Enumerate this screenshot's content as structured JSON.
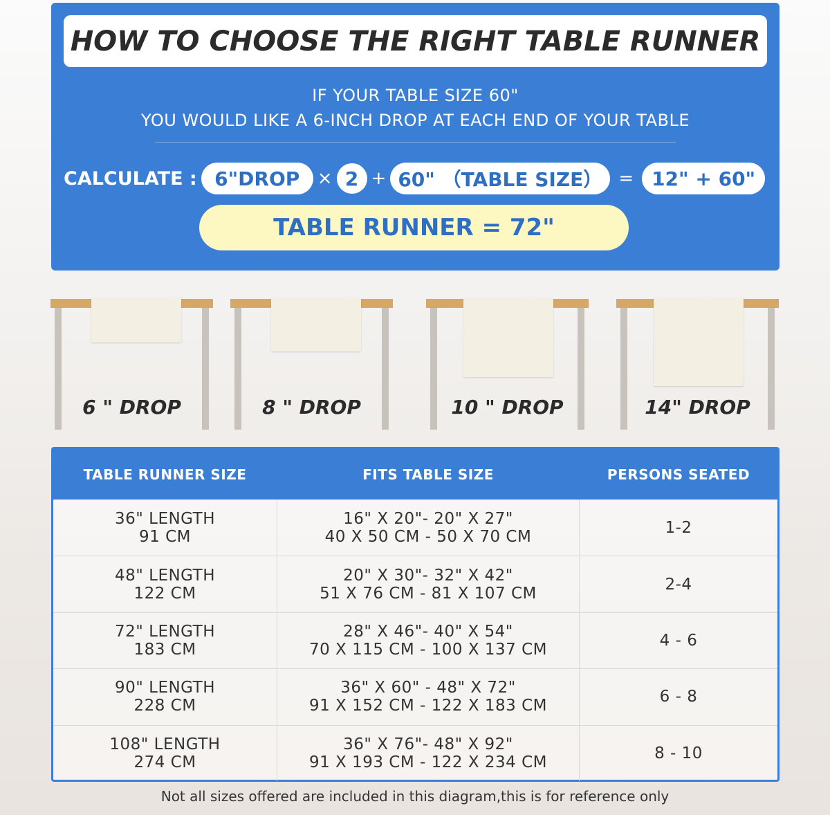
{
  "title": "HOW TO CHOOSE THE RIGHT TABLE RUNNER",
  "intro": {
    "line1": "IF YOUR TABLE SIZE 60\"",
    "line2": "YOU WOULD LIKE A 6-INCH DROP AT EACH END OF YOUR TABLE"
  },
  "calc": {
    "label": "CALCULATE :",
    "drop": "6\"DROP",
    "times": "×",
    "multiplier": "2",
    "plus": "+",
    "table": "60\" （TABLE SIZE）",
    "equals": "=",
    "sum": "12\" + 60\"",
    "result": "TABLE RUNNER = 72\""
  },
  "drops": [
    {
      "label": "6 \" DROP",
      "inches": 6
    },
    {
      "label": "8 \" DROP",
      "inches": 8
    },
    {
      "label": "10 \" DROP",
      "inches": 10
    },
    {
      "label": "14\" DROP",
      "inches": 14
    }
  ],
  "table": {
    "headers": [
      "TABLE RUNNER SIZE",
      "FITS TABLE SIZE",
      "PERSONS SEATED"
    ],
    "rows": [
      {
        "size": [
          "36\" LENGTH",
          "91 CM"
        ],
        "fits": [
          "16\" X 20\"- 20\" X 27\"",
          "40 X 50 CM - 50 X 70 CM"
        ],
        "persons": "1-2"
      },
      {
        "size": [
          "48\" LENGTH",
          "122 CM"
        ],
        "fits": [
          "20\" X 30\"- 32\" X 42\"",
          "51 X 76 CM - 81 X 107 CM"
        ],
        "persons": "2-4"
      },
      {
        "size": [
          "72\" LENGTH",
          "183 CM"
        ],
        "fits": [
          "28\" X 46\"- 40\" X 54\"",
          "70 X 115 CM - 100 X 137 CM"
        ],
        "persons": "4 - 6"
      },
      {
        "size": [
          "90\" LENGTH",
          "228 CM"
        ],
        "fits": [
          "36\" X 60\" - 48\" X 72\"",
          "91 X 152 CM - 122 X 183 CM"
        ],
        "persons": "6 - 8"
      },
      {
        "size": [
          "108\" LENGTH",
          "274 CM"
        ],
        "fits": [
          "36\" X 76\"- 48\" X 92\"",
          "91 X 193 CM - 122 X 234 CM"
        ],
        "persons": "8 - 10"
      }
    ]
  },
  "footer": "Not all sizes offered are included in this diagram,this is for reference only",
  "colors": {
    "brand_blue": "#3a7fd5",
    "result_bg": "#fdf8c2",
    "tabletop": "#d6a767"
  }
}
